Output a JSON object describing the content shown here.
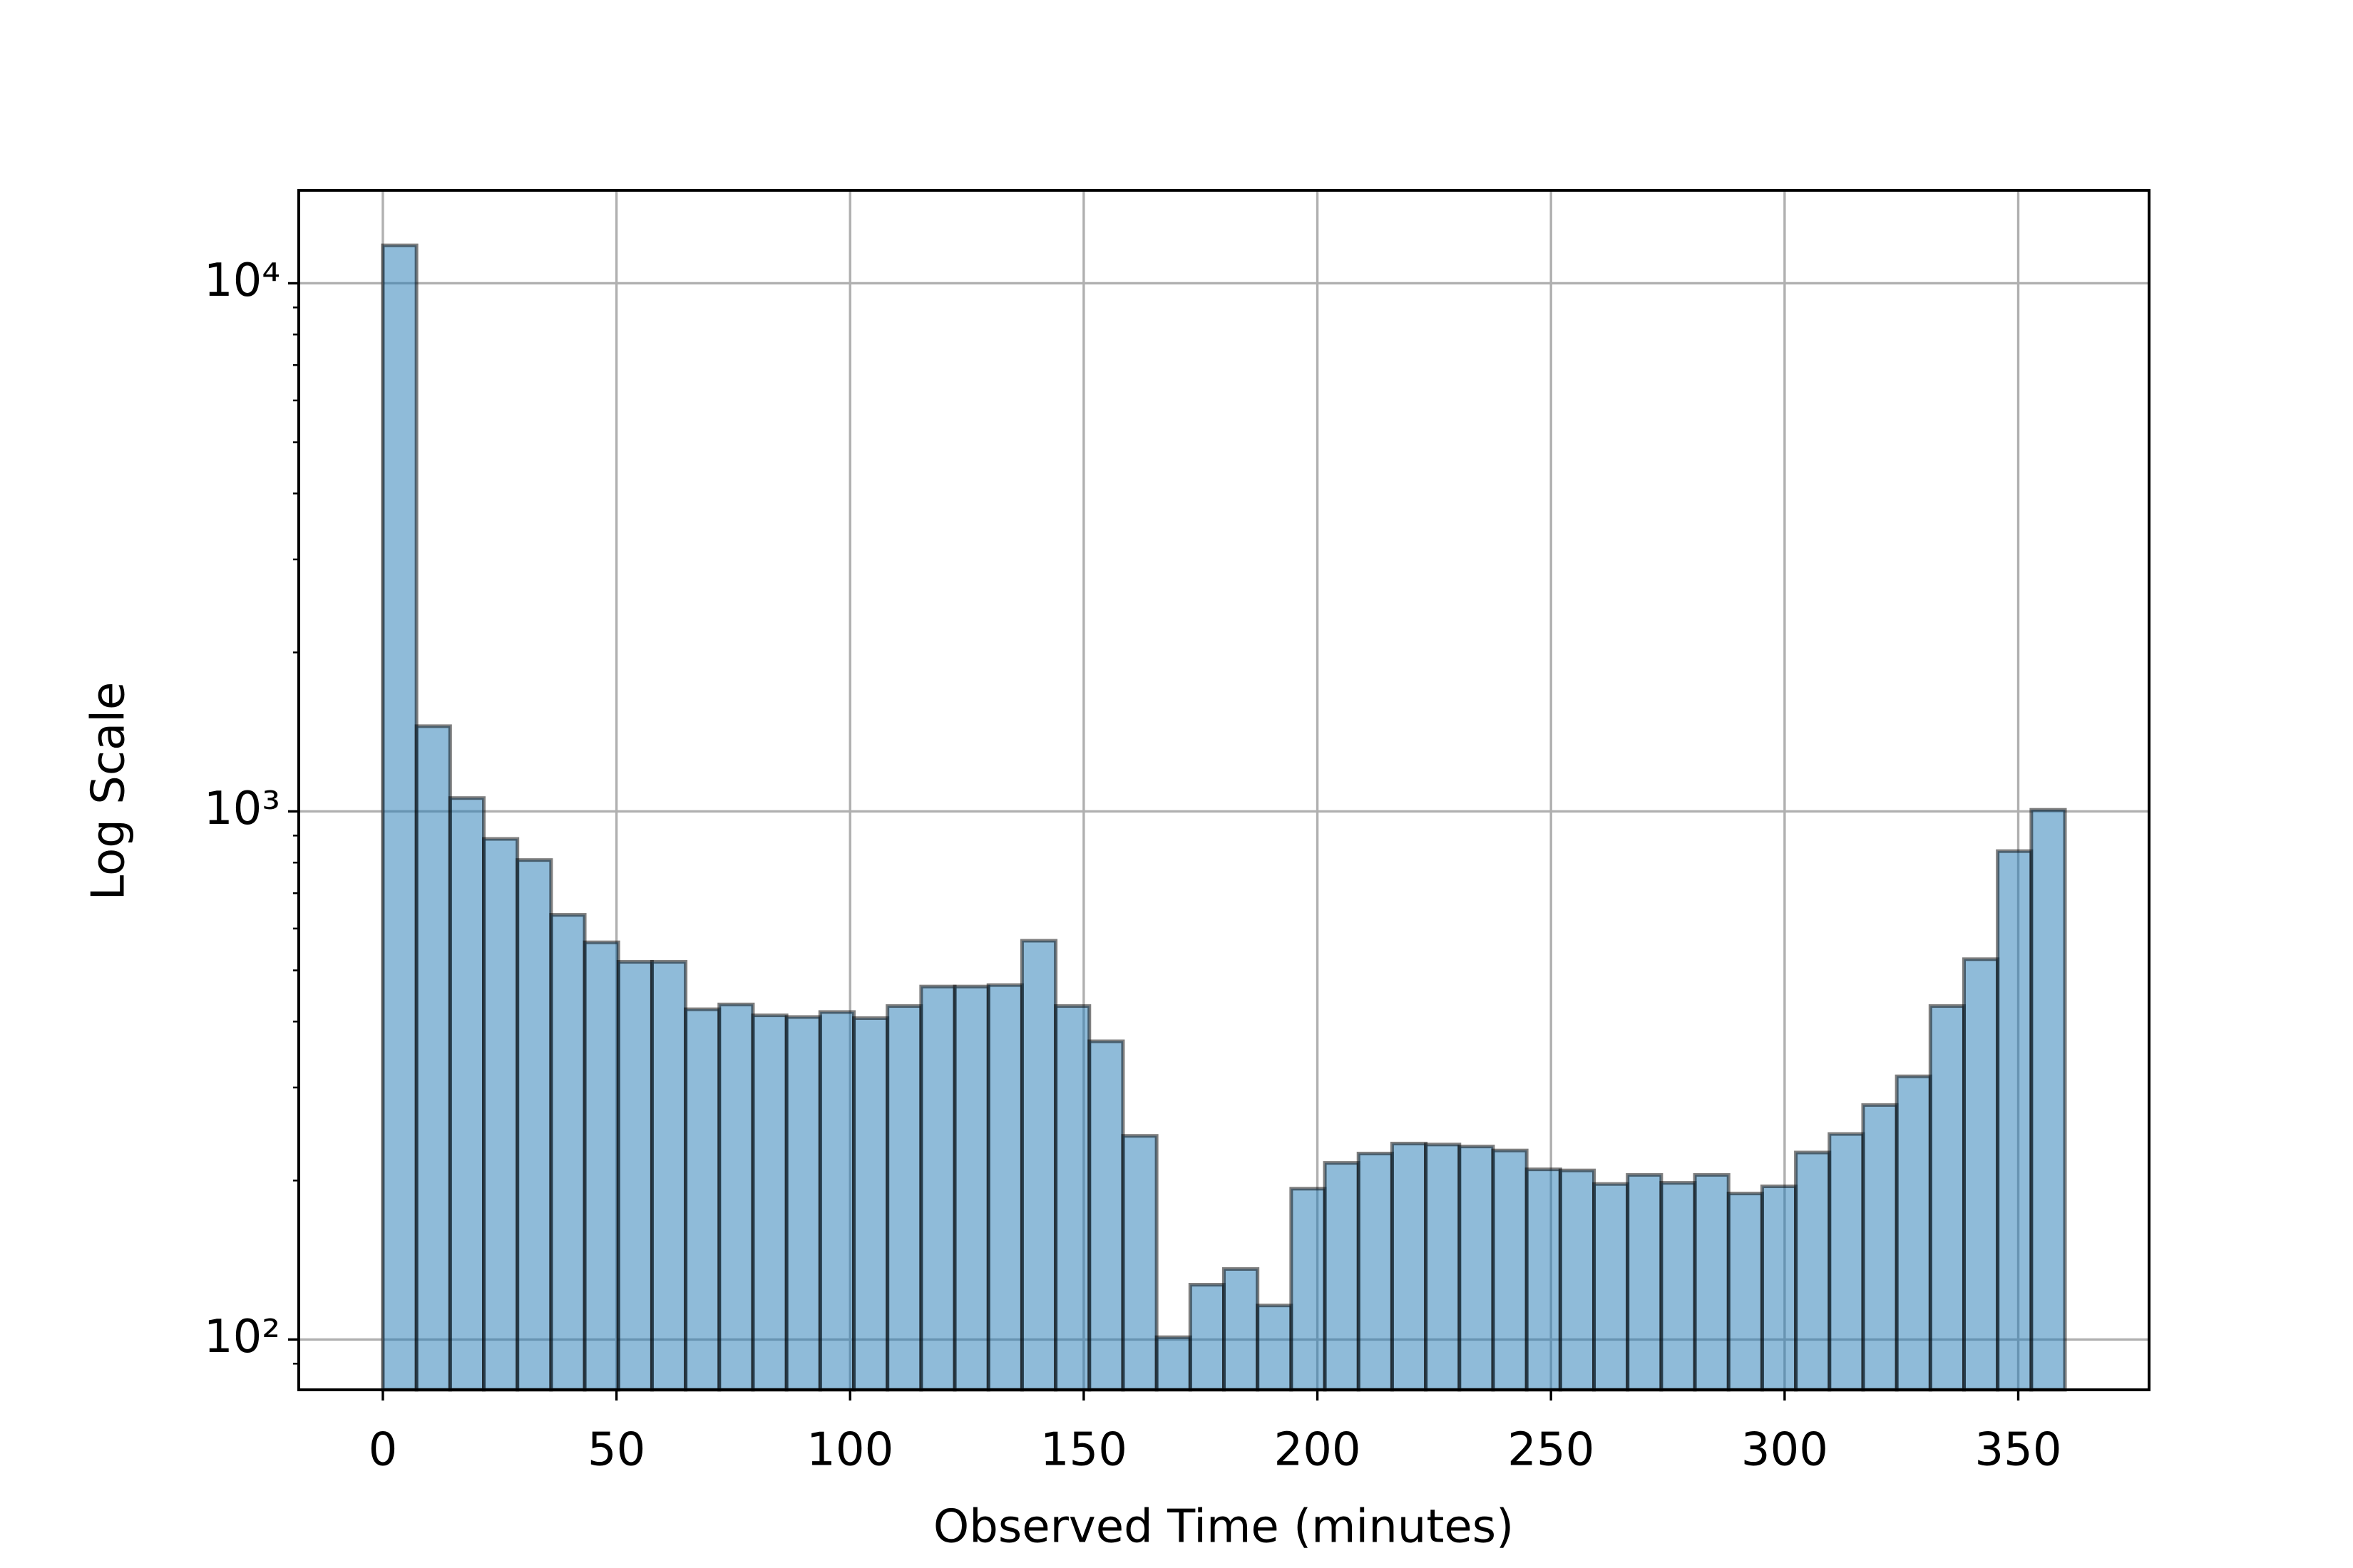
{
  "chart_data": {
    "type": "histogram",
    "x_label": "Observed Time (minutes)",
    "y_label": "Log Scale",
    "bins": [
      0,
      7.2,
      14.4,
      21.6,
      28.8,
      36,
      43.2,
      50.4,
      57.6,
      64.8,
      72,
      79.2,
      86.4,
      93.6,
      100.8,
      108,
      115.2,
      122.4,
      129.6,
      136.8,
      144,
      151.2,
      158.4,
      165.6,
      172.8,
      180,
      187.2,
      194.4,
      201.6,
      208.8,
      216,
      223.2,
      230.4,
      237.6,
      244.8,
      252,
      259.2,
      266.4,
      273.6,
      280.8,
      288,
      295.2,
      302.4,
      309.6,
      316.8,
      324,
      331.2,
      338.4,
      345.6,
      352.8,
      360
    ],
    "values": [
      11800,
      1450,
      1060,
      887,
      809,
      637,
      565,
      519,
      519,
      422,
      431,
      411,
      408,
      417,
      406,
      428,
      466,
      466,
      469,
      569,
      428,
      367,
      243,
      101,
      127,
      136,
      116,
      193,
      216,
      225,
      235,
      234,
      232,
      228,
      210,
      209,
      197,
      205,
      198,
      205,
      189,
      195,
      226,
      245,
      278,
      315,
      428,
      525,
      841,
      1007
    ],
    "color": "#1f77b4",
    "edgecolor": "#000000",
    "alpha": 0.5,
    "xlim": [
      -18,
      378
    ],
    "xticks": [
      0,
      50,
      100,
      150,
      200,
      250,
      300,
      350
    ],
    "ylog": true,
    "ylim": [
      80.3,
      15000
    ],
    "yticks": [
      {
        "value": 100,
        "label": "10²"
      },
      {
        "value": 1000,
        "label": "10³"
      },
      {
        "value": 10000,
        "label": "10⁴"
      }
    ],
    "yminorticks": [
      90,
      200,
      300,
      400,
      500,
      600,
      700,
      800,
      900,
      2000,
      3000,
      4000,
      5000,
      6000,
      7000,
      8000,
      9000
    ],
    "grid": true
  }
}
